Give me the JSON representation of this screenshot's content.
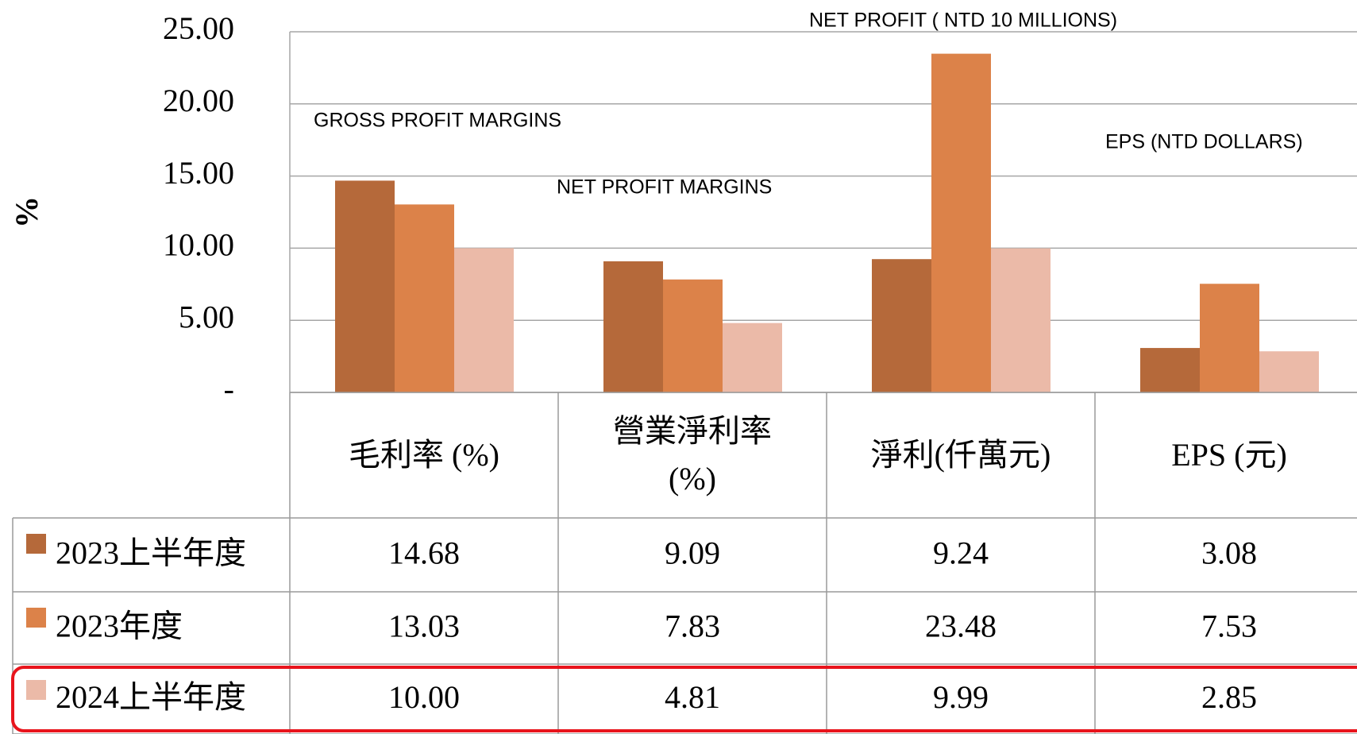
{
  "chart_data": {
    "type": "bar",
    "y_label": "%",
    "categories": [
      "毛利率 (%)",
      "營業淨利率 (%)",
      "淨利(仟萬元)",
      "EPS (元)"
    ],
    "series": [
      {
        "name": "2023上半年度",
        "color": "#b5693a",
        "values": [
          14.68,
          9.09,
          9.24,
          3.08
        ],
        "value_labels": [
          "14.68",
          "9.09",
          "9.24",
          "3.08"
        ]
      },
      {
        "name": "2023年度",
        "color": "#dc8249",
        "values": [
          13.03,
          7.83,
          23.48,
          7.53
        ],
        "value_labels": [
          "13.03",
          "7.83",
          "23.48",
          "7.53"
        ]
      },
      {
        "name": "2024上半年度",
        "color": "#ebbaa8",
        "values": [
          10,
          4.81,
          9.99,
          2.85
        ],
        "value_labels": [
          "10.00",
          "4.81",
          "9.99",
          "2.85"
        ]
      }
    ],
    "annotations": [
      "GROSS PROFIT MARGINS",
      "NET PROFIT MARGINS",
      "NET PROFIT ( NTD 10 MILLIONS)",
      "EPS (NTD DOLLARS)"
    ],
    "ylim": [
      0,
      25
    ],
    "yticks": [
      {
        "value": 0,
        "label": "-"
      },
      {
        "value": 5,
        "label": "5.00"
      },
      {
        "value": 10,
        "label": "10.00"
      },
      {
        "value": 15,
        "label": "15.00"
      },
      {
        "value": 20,
        "label": "20.00"
      },
      {
        "value": 25,
        "label": "25.00"
      }
    ],
    "grid": true,
    "highlight_series": 2
  }
}
